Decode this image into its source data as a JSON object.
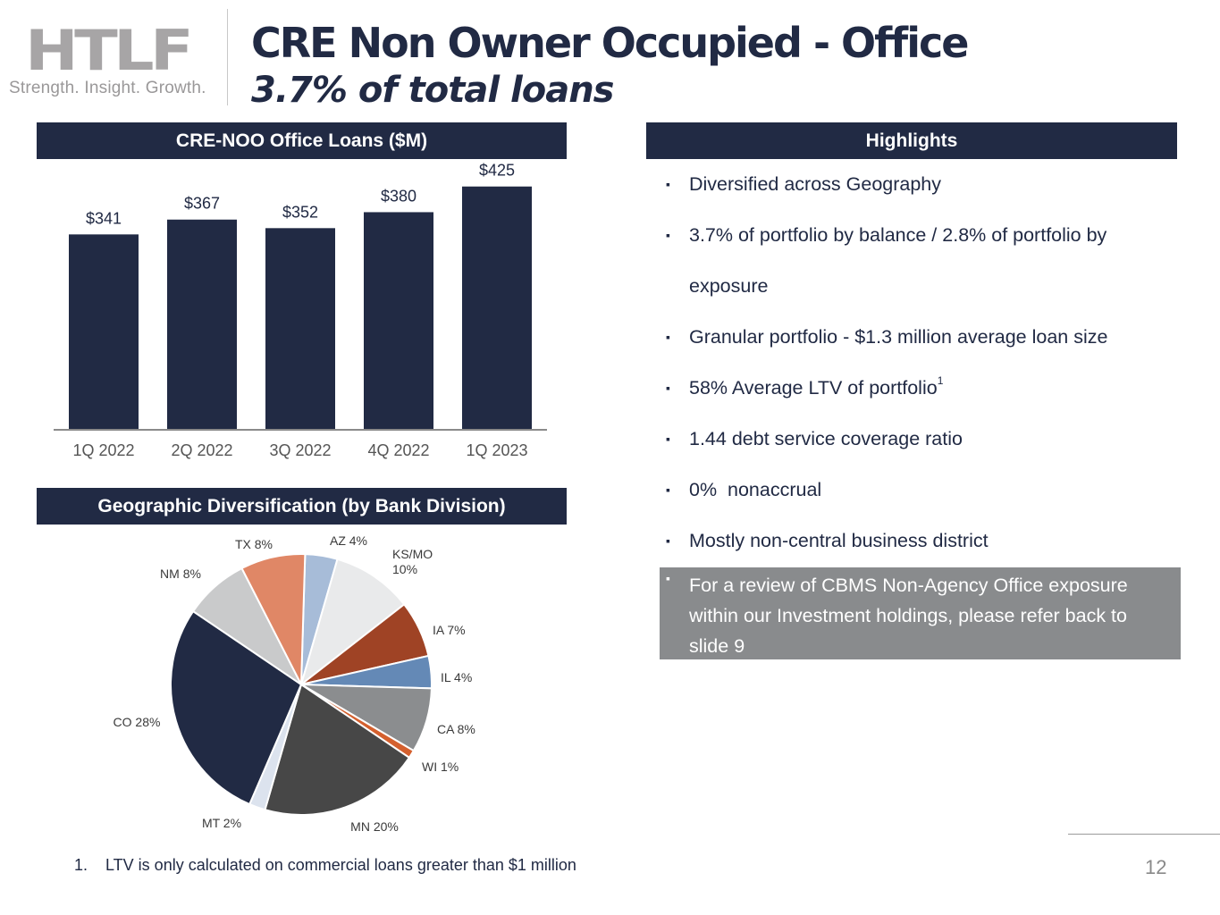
{
  "logo": {
    "mark": "HTLF",
    "tagline": "Strength. Insight. Growth."
  },
  "header": {
    "title": "CRE Non Owner Occupied - Office",
    "subtitle": "3.7% of total loans"
  },
  "colors": {
    "navy": "#212a44",
    "callout_gray": "#898b8d"
  },
  "chart_data": [
    {
      "type": "bar",
      "title": "CRE-NOO Office Loans ($M)",
      "categories": [
        "1Q 2022",
        "2Q 2022",
        "3Q 2022",
        "4Q 2022",
        "1Q 2023"
      ],
      "values": [
        341,
        367,
        352,
        380,
        425
      ],
      "data_labels": [
        "$341",
        "$367",
        "$352",
        "$380",
        "$425"
      ],
      "xlabel": "",
      "ylabel": "",
      "ylim": [
        0,
        470
      ],
      "grid": false,
      "bar_color": "#212a44"
    },
    {
      "type": "pie",
      "title": "Geographic Diversification (by Bank Division)",
      "start": "top",
      "direction": "clockwise",
      "slices": [
        {
          "label": "AZ",
          "value": 4,
          "display": "AZ 4%",
          "color": "#a7bcd8"
        },
        {
          "label": "KS/MO",
          "value": 10,
          "display": "KS/MO 10%",
          "color": "#e9eaeb"
        },
        {
          "label": "IA",
          "value": 7,
          "display": "IA 7%",
          "color": "#9f4325"
        },
        {
          "label": "IL",
          "value": 4,
          "display": "IL 4%",
          "color": "#6489b6"
        },
        {
          "label": "CA",
          "value": 8,
          "display": "CA 8%",
          "color": "#8b8d8f"
        },
        {
          "label": "WI",
          "value": 1,
          "display": "WI 1%",
          "color": "#d4602e"
        },
        {
          "label": "MN",
          "value": 20,
          "display": "MN 20%",
          "color": "#474747"
        },
        {
          "label": "MT",
          "value": 2,
          "display": "MT 2%",
          "color": "#dce3ee"
        },
        {
          "label": "CO",
          "value": 28,
          "display": "CO 28%",
          "color": "#212a44"
        },
        {
          "label": "NM",
          "value": 8,
          "display": "NM 8%",
          "color": "#c9cacb"
        },
        {
          "label": "TX",
          "value": 8,
          "display": "TX 8%",
          "color": "#e08766"
        }
      ]
    }
  ],
  "highlights": {
    "title": "Highlights",
    "bullet": "▪",
    "items": [
      "Diversified across Geography",
      "3.7% of portfolio by balance / 2.8% of portfolio by exposure",
      "Granular portfolio - $1.3 million average loan size",
      "58% Average LTV of portfolio",
      "1.44 debt service coverage ratio",
      "0%  nonaccrual",
      "Mostly non-central business district"
    ],
    "ltv_footnote_ref": "1",
    "callout": "For a review of CBMS Non-Agency Office exposure within our Investment holdings, please refer back to slide 9"
  },
  "footnote": {
    "number": "1.",
    "text": "LTV is only calculated on commercial loans greater than $1 million"
  },
  "page_number": "12"
}
